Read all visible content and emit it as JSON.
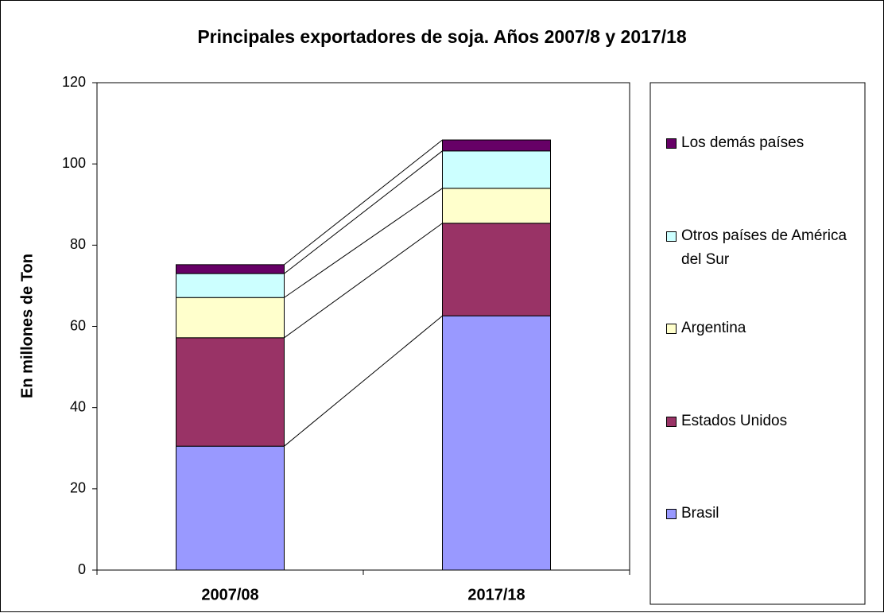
{
  "chart_data": {
    "type": "stacked_bar",
    "title": "Principales exportadores de soja. Años 2007/8 y 2017/18",
    "y_label": "En millones de Ton",
    "categories": [
      "2007/08",
      "2017/18"
    ],
    "series": [
      {
        "name": "Brasil",
        "color": "#9999ff",
        "values": [
          30.5,
          62.6
        ]
      },
      {
        "name": "Estados Unidos",
        "color": "#993366",
        "values": [
          26.7,
          22.8
        ]
      },
      {
        "name": "Argentina",
        "color": "#ffffcc",
        "values": [
          9.9,
          8.6
        ]
      },
      {
        "name": "Otros países de América del Sur",
        "color": "#ccffff",
        "values": [
          5.9,
          9.2
        ]
      },
      {
        "name": "Los demás países",
        "color": "#660066",
        "values": [
          2.2,
          2.7
        ]
      }
    ],
    "ylim": [
      0,
      120
    ],
    "yticks": [
      0,
      20,
      40,
      60,
      80,
      100,
      120
    ],
    "series_lines": true,
    "legend": "right"
  }
}
